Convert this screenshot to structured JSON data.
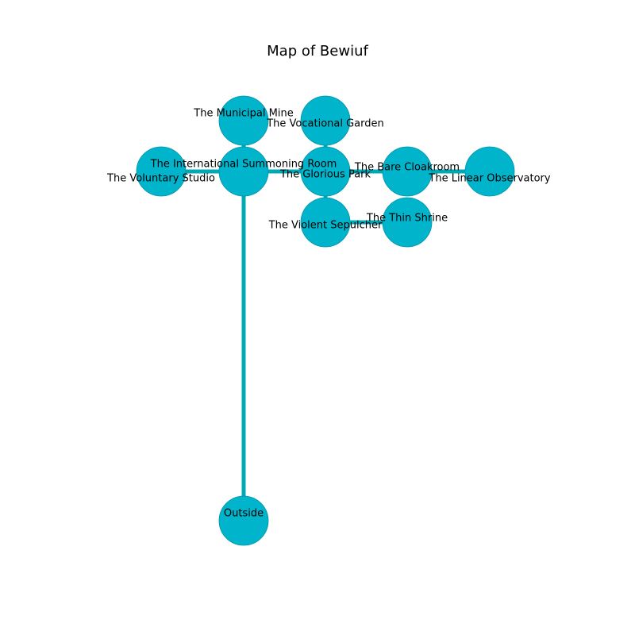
{
  "title": "Map of Bewiuf",
  "colors": {
    "node_fill": "#00b4cc",
    "node_stroke": "#0093a8",
    "edge": "#00aab4",
    "label": "#000000"
  },
  "rooms": [
    {
      "id": "municipal-mine",
      "name": "The Municipal Mine"
    },
    {
      "id": "vocational-garden",
      "name": "The Vocational Garden"
    },
    {
      "id": "voluntary-studio",
      "name": "The Voluntary Studio"
    },
    {
      "id": "international-summoning-room",
      "name": "The International Summoning Room"
    },
    {
      "id": "glorious-park",
      "name": "The Glorious Park"
    },
    {
      "id": "bare-cloakroom",
      "name": "The Bare Cloakroom"
    },
    {
      "id": "linear-observatory",
      "name": "The Linear Observatory"
    },
    {
      "id": "violent-sepulcher",
      "name": "The Violent Sepulcher"
    },
    {
      "id": "thin-shrine",
      "name": "The Thin Shrine"
    },
    {
      "id": "outside",
      "name": "Outside"
    }
  ],
  "connections": [
    [
      "municipal-mine",
      "international-summoning-room"
    ],
    [
      "voluntary-studio",
      "international-summoning-room"
    ],
    [
      "international-summoning-room",
      "glorious-park"
    ],
    [
      "international-summoning-room",
      "outside"
    ],
    [
      "vocational-garden",
      "glorious-park"
    ],
    [
      "glorious-park",
      "bare-cloakroom"
    ],
    [
      "glorious-park",
      "violent-sepulcher"
    ],
    [
      "bare-cloakroom",
      "linear-observatory"
    ],
    [
      "violent-sepulcher",
      "thin-shrine"
    ]
  ]
}
